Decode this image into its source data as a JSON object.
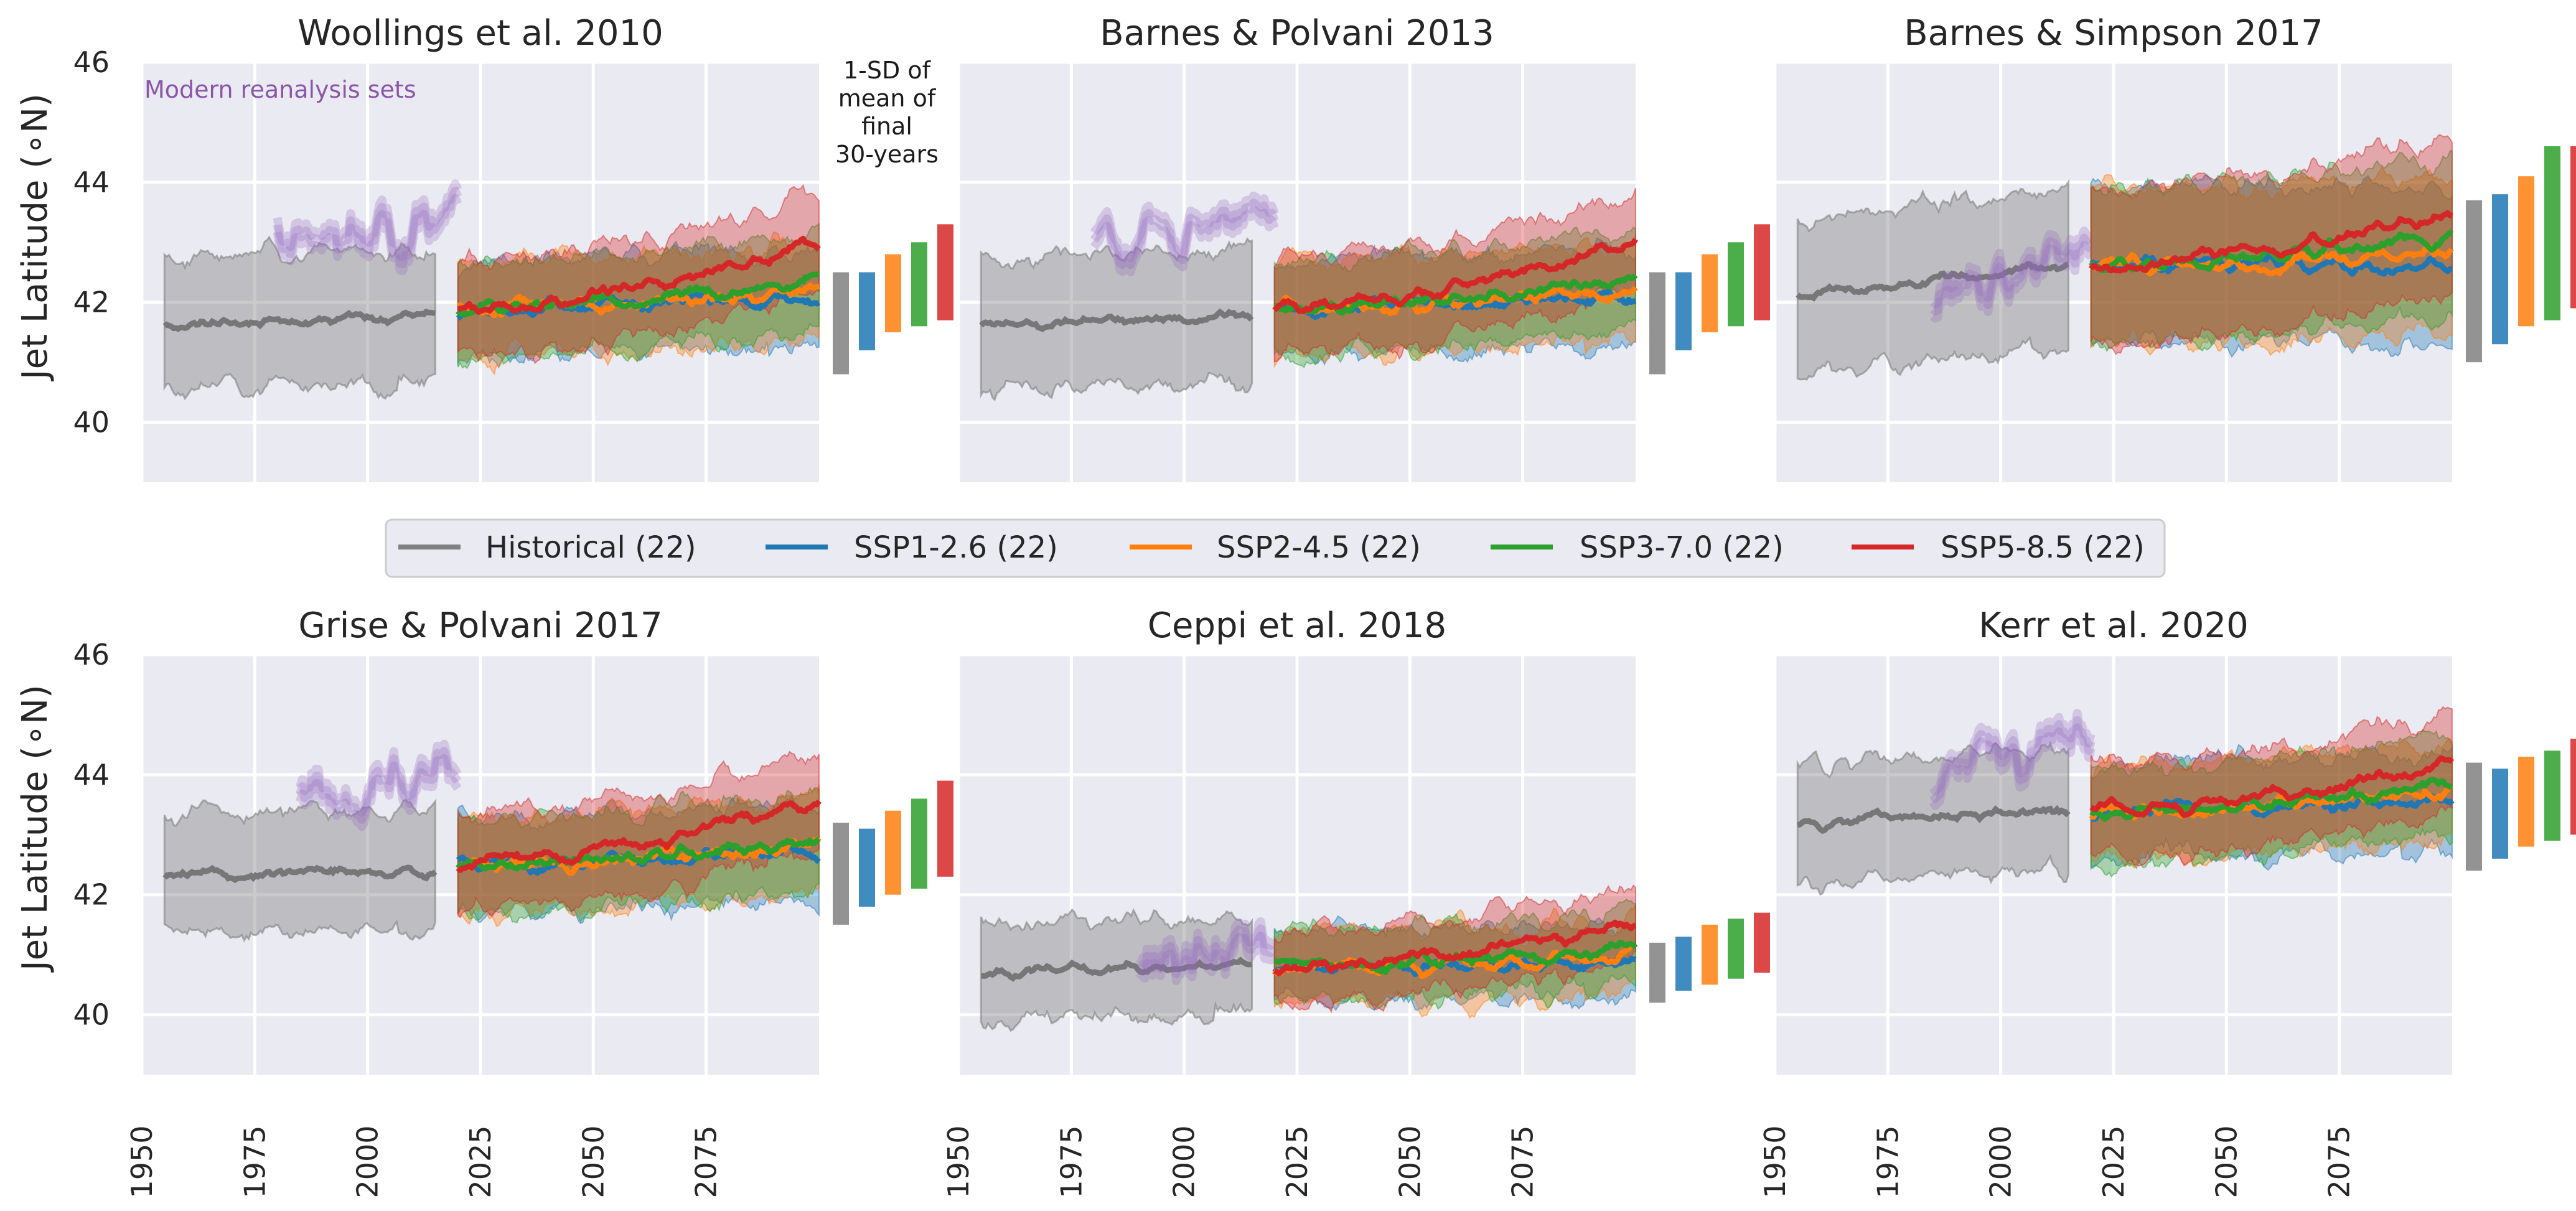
{
  "figure": {
    "ylabel": "Jet Latitude (∘N)",
    "annotation": "Modern reanalysis sets",
    "sd_note": [
      "1-SD of",
      "mean of",
      "final",
      "30-years"
    ]
  },
  "legend": [
    {
      "label": "Historical (22)",
      "color": "#808080"
    },
    {
      "label": "SSP1-2.6 (22)",
      "color": "#1f77b4"
    },
    {
      "label": "SSP2-4.5 (22)",
      "color": "#ff7f0e"
    },
    {
      "label": "SSP3-7.0 (22)",
      "color": "#2ca02c"
    },
    {
      "label": "SSP5-8.5 (22)",
      "color": "#d62728"
    }
  ],
  "colors": {
    "historical": "#808080",
    "ssp126": "#1f77b4",
    "ssp245": "#ff7f0e",
    "ssp370": "#2ca02c",
    "ssp585": "#d62728",
    "reanalysis": "#9467bd",
    "panel_bg": "#eaeaf2",
    "grid": "#ffffff"
  },
  "chart_data": [
    {
      "type": "line",
      "title": "Woollings et al. 2010",
      "xlim": [
        1950,
        2100
      ],
      "ylim": [
        39,
        46
      ],
      "xticks": [
        1950,
        1975,
        2000,
        2025,
        2050,
        2075
      ],
      "yticks": [
        40,
        42,
        44,
        46
      ],
      "historical": {
        "x": [
          1955,
          2015
        ],
        "mean": [
          41.6,
          41.8
        ],
        "spread": 1.1
      },
      "reanalysis": [
        {
          "x": [
            1980,
            2020
          ],
          "y": [
            42.9,
            43.4
          ]
        }
      ],
      "ssp": {
        "x": [
          2020,
          2100
        ],
        "start": 41.9,
        "end": [
          42.1,
          42.2,
          42.4,
          43.0
        ],
        "spread": 0.8
      },
      "sd_bars": [
        [
          40.8,
          42.5
        ],
        [
          41.2,
          42.5
        ],
        [
          41.5,
          42.8
        ],
        [
          41.6,
          43.0
        ],
        [
          41.7,
          43.3
        ]
      ]
    },
    {
      "type": "line",
      "title": "Barnes & Polvani 2013",
      "xlim": [
        1950,
        2100
      ],
      "ylim": [
        39,
        46
      ],
      "xticks": [
        1950,
        1975,
        2000,
        2025,
        2050,
        2075
      ],
      "yticks": [
        40,
        42,
        44,
        46
      ],
      "historical": {
        "x": [
          1955,
          2015
        ],
        "mean": [
          41.6,
          41.8
        ],
        "spread": 1.1
      },
      "reanalysis": [
        {
          "x": [
            1980,
            2020
          ],
          "y": [
            42.9,
            43.4
          ]
        }
      ],
      "ssp": {
        "x": [
          2020,
          2100
        ],
        "start": 41.9,
        "end": [
          42.1,
          42.2,
          42.4,
          43.0
        ],
        "spread": 0.8
      },
      "sd_bars": [
        [
          40.8,
          42.5
        ],
        [
          41.2,
          42.5
        ],
        [
          41.5,
          42.8
        ],
        [
          41.6,
          43.0
        ],
        [
          41.7,
          43.3
        ]
      ]
    },
    {
      "type": "line",
      "title": "Barnes & Simpson 2017",
      "xlim": [
        1950,
        2100
      ],
      "ylim": [
        39,
        46
      ],
      "xticks": [
        1950,
        1975,
        2000,
        2025,
        2050,
        2075
      ],
      "yticks": [
        40,
        42,
        44,
        46
      ],
      "historical": {
        "x": [
          1955,
          2015
        ],
        "mean": [
          42.1,
          42.6
        ],
        "spread": 1.3
      },
      "reanalysis": [
        {
          "x": [
            1985,
            2020
          ],
          "y": [
            42.0,
            42.8
          ]
        }
      ],
      "ssp": {
        "x": [
          2020,
          2100
        ],
        "start": 42.6,
        "end": [
          42.6,
          42.8,
          43.1,
          43.5
        ],
        "spread": 1.3
      },
      "sd_bars": [
        [
          41.0,
          43.7
        ],
        [
          41.3,
          43.8
        ],
        [
          41.6,
          44.1
        ],
        [
          41.7,
          44.6
        ],
        [
          41.9,
          44.6
        ]
      ]
    },
    {
      "type": "line",
      "title": "Grise & Polvani 2017",
      "xlim": [
        1950,
        2100
      ],
      "ylim": [
        39,
        46
      ],
      "xticks": [
        1950,
        1975,
        2000,
        2025,
        2050,
        2075
      ],
      "yticks": [
        40,
        42,
        44,
        46
      ],
      "historical": {
        "x": [
          1955,
          2015
        ],
        "mean": [
          42.3,
          42.4
        ],
        "spread": 1.0
      },
      "reanalysis": [
        {
          "x": [
            1985,
            2020
          ],
          "y": [
            43.5,
            44.2
          ]
        }
      ],
      "ssp": {
        "x": [
          2020,
          2100
        ],
        "start": 42.5,
        "end": [
          42.7,
          42.8,
          42.9,
          43.6
        ],
        "spread": 0.8
      },
      "sd_bars": [
        [
          41.5,
          43.2
        ],
        [
          41.8,
          43.1
        ],
        [
          42.0,
          43.4
        ],
        [
          42.1,
          43.6
        ],
        [
          42.3,
          43.9
        ]
      ]
    },
    {
      "type": "line",
      "title": "Ceppi et al. 2018",
      "xlim": [
        1950,
        2100
      ],
      "ylim": [
        39,
        46
      ],
      "xticks": [
        1950,
        1975,
        2000,
        2025,
        2050,
        2075
      ],
      "yticks": [
        40,
        42,
        44,
        46
      ],
      "historical": {
        "x": [
          1955,
          2015
        ],
        "mean": [
          40.7,
          40.8
        ],
        "spread": 0.8
      },
      "reanalysis": [
        {
          "x": [
            1990,
            2020
          ],
          "y": [
            40.8,
            41.3
          ]
        }
      ],
      "ssp": {
        "x": [
          2020,
          2100
        ],
        "start": 40.8,
        "end": [
          40.9,
          41.0,
          41.1,
          41.5
        ],
        "spread": 0.6
      },
      "sd_bars": [
        [
          40.2,
          41.2
        ],
        [
          40.4,
          41.3
        ],
        [
          40.5,
          41.5
        ],
        [
          40.6,
          41.6
        ],
        [
          40.7,
          41.7
        ]
      ]
    },
    {
      "type": "line",
      "title": "Kerr et al. 2020",
      "xlim": [
        1950,
        2100
      ],
      "ylim": [
        39,
        46
      ],
      "xticks": [
        1950,
        1975,
        2000,
        2025,
        2050,
        2075
      ],
      "yticks": [
        40,
        42,
        44,
        46
      ],
      "historical": {
        "x": [
          1955,
          2015
        ],
        "mean": [
          43.2,
          43.4
        ],
        "spread": 1.0
      },
      "reanalysis": [
        {
          "x": [
            1985,
            2020
          ],
          "y": [
            44.0,
            44.6
          ]
        }
      ],
      "ssp": {
        "x": [
          2020,
          2100
        ],
        "start": 43.4,
        "end": [
          43.6,
          43.7,
          43.8,
          44.2
        ],
        "spread": 0.8
      },
      "sd_bars": [
        [
          42.4,
          44.2
        ],
        [
          42.6,
          44.1
        ],
        [
          42.8,
          44.3
        ],
        [
          42.9,
          44.4
        ],
        [
          43.0,
          44.6
        ]
      ]
    }
  ]
}
